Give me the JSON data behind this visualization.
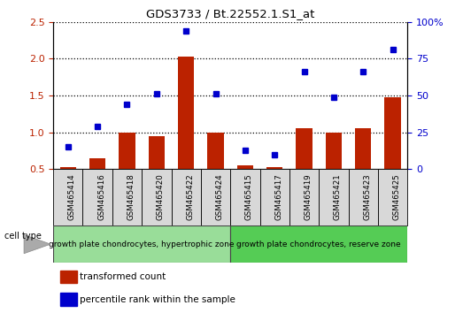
{
  "title": "GDS3733 / Bt.22552.1.S1_at",
  "samples": [
    "GSM465414",
    "GSM465416",
    "GSM465418",
    "GSM465420",
    "GSM465422",
    "GSM465424",
    "GSM465415",
    "GSM465417",
    "GSM465419",
    "GSM465421",
    "GSM465423",
    "GSM465425"
  ],
  "bar_values": [
    0.53,
    0.65,
    1.0,
    0.95,
    2.03,
    1.0,
    0.55,
    0.52,
    1.05,
    1.0,
    1.05,
    1.48
  ],
  "dot_values_left": [
    0.8,
    1.08,
    1.38,
    1.52,
    2.38,
    1.52,
    0.75,
    0.7,
    1.82,
    1.48,
    1.82,
    2.12
  ],
  "bar_color": "#bb2200",
  "dot_color": "#0000cc",
  "ylim_left": [
    0.5,
    2.5
  ],
  "ylim_right": [
    0,
    100
  ],
  "yticks_left": [
    0.5,
    1.0,
    1.5,
    2.0,
    2.5
  ],
  "yticks_right": [
    0,
    25,
    50,
    75,
    100
  ],
  "group1_label": "growth plate chondrocytes, hypertrophic zone",
  "group2_label": "growth plate chondrocytes, reserve zone",
  "group1_count": 6,
  "group2_count": 6,
  "cell_type_label": "cell type",
  "legend1": "transformed count",
  "legend2": "percentile rank within the sample",
  "sample_bg_color": "#d8d8d8",
  "group_bg1": "#99dd99",
  "group_bg2": "#55cc55",
  "plot_bg": "#ffffff"
}
